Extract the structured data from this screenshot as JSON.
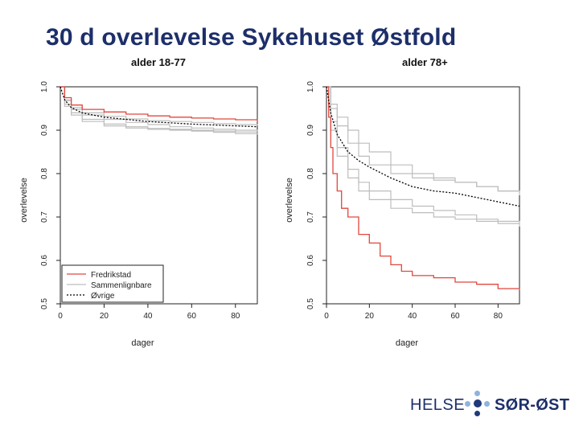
{
  "slide": {
    "title": "30 d overlevelse Sykehuset Østfold"
  },
  "logo": {
    "left_word": "HELSE",
    "right_word": "SØR-ØST",
    "dark": "#1f3a7a",
    "light": "#8fb4dc"
  },
  "colors": {
    "fredrikstad": "#e0473d",
    "sammenlignbare": "#bdbdbd",
    "ovrige": "#000000",
    "axis": "#222222"
  },
  "chart_data": [
    {
      "type": "line",
      "title": "alder 18-77",
      "xlabel": "dager",
      "ylabel": "overlevelse",
      "xlim": [
        0,
        90
      ],
      "ylim": [
        0.5,
        1.0
      ],
      "xticks": [
        "0",
        "20",
        "40",
        "60",
        "80"
      ],
      "yticks": [
        "0.5",
        "0.6",
        "0.7",
        "0.8",
        "0.9",
        "1.0"
      ],
      "grid": false,
      "legend_position": "bottom-left",
      "legend": [
        "Fredrikstad",
        "Sammenlignbare",
        "Øvrige"
      ],
      "series": [
        {
          "name": "Fredrikstad",
          "role": "fredrikstad",
          "style": "step",
          "x": [
            0,
            2,
            5,
            10,
            20,
            30,
            40,
            50,
            60,
            70,
            80,
            90
          ],
          "y": [
            1.0,
            0.975,
            0.958,
            0.948,
            0.942,
            0.937,
            0.933,
            0.93,
            0.928,
            0.926,
            0.924,
            0.92
          ]
        },
        {
          "role": "sammenlignbare",
          "style": "step",
          "x": [
            0,
            2,
            5,
            10,
            20,
            30,
            40,
            50,
            60,
            70,
            80,
            90
          ],
          "y": [
            1.0,
            0.97,
            0.952,
            0.94,
            0.932,
            0.926,
            0.922,
            0.92,
            0.918,
            0.915,
            0.913,
            0.911
          ]
        },
        {
          "role": "sammenlignbare",
          "style": "step",
          "x": [
            0,
            2,
            5,
            10,
            20,
            30,
            40,
            50,
            60,
            70,
            80,
            90
          ],
          "y": [
            1.0,
            0.968,
            0.948,
            0.935,
            0.925,
            0.918,
            0.913,
            0.908,
            0.905,
            0.902,
            0.9,
            0.898
          ]
        },
        {
          "role": "sammenlignbare",
          "style": "step",
          "x": [
            0,
            2,
            5,
            10,
            20,
            30,
            40,
            50,
            60,
            70,
            80,
            90
          ],
          "y": [
            1.0,
            0.96,
            0.94,
            0.925,
            0.914,
            0.908,
            0.904,
            0.902,
            0.9,
            0.898,
            0.896,
            0.895
          ]
        },
        {
          "role": "sammenlignbare",
          "style": "step",
          "x": [
            0,
            2,
            5,
            10,
            20,
            30,
            40,
            50,
            60,
            70,
            80,
            90
          ],
          "y": [
            1.0,
            0.955,
            0.935,
            0.92,
            0.91,
            0.905,
            0.902,
            0.9,
            0.898,
            0.895,
            0.892,
            0.89
          ]
        },
        {
          "name": "Øvrige",
          "role": "ovrige",
          "style": "dotted",
          "x": [
            0,
            2,
            5,
            10,
            20,
            30,
            40,
            50,
            60,
            70,
            80,
            90
          ],
          "y": [
            1.0,
            0.97,
            0.952,
            0.94,
            0.93,
            0.925,
            0.92,
            0.917,
            0.914,
            0.912,
            0.91,
            0.908
          ]
        }
      ]
    },
    {
      "type": "line",
      "title": "alder 78+",
      "xlabel": "dager",
      "ylabel": "overlevelse",
      "xlim": [
        0,
        90
      ],
      "ylim": [
        0.5,
        1.0
      ],
      "xticks": [
        "0",
        "20",
        "40",
        "60",
        "80"
      ],
      "yticks": [
        "0.5",
        "0.6",
        "0.7",
        "0.8",
        "0.9",
        "1.0"
      ],
      "grid": false,
      "series": [
        {
          "name": "Fredrikstad",
          "role": "fredrikstad",
          "style": "step",
          "x": [
            0,
            1,
            2,
            3,
            5,
            7,
            10,
            15,
            20,
            25,
            30,
            35,
            40,
            50,
            60,
            70,
            80,
            90
          ],
          "y": [
            1.0,
            0.93,
            0.86,
            0.8,
            0.76,
            0.72,
            0.7,
            0.66,
            0.64,
            0.61,
            0.59,
            0.575,
            0.565,
            0.56,
            0.55,
            0.545,
            0.535,
            0.532
          ]
        },
        {
          "role": "sammenlignbare",
          "style": "step",
          "x": [
            0,
            2,
            5,
            10,
            15,
            20,
            30,
            40,
            50,
            60,
            70,
            80,
            90
          ],
          "y": [
            1.0,
            0.96,
            0.93,
            0.9,
            0.87,
            0.85,
            0.82,
            0.8,
            0.79,
            0.78,
            0.77,
            0.76,
            0.75
          ]
        },
        {
          "role": "sammenlignbare",
          "style": "step",
          "x": [
            0,
            2,
            5,
            10,
            15,
            20,
            30,
            40,
            50,
            60,
            70,
            80,
            90
          ],
          "y": [
            1.0,
            0.95,
            0.91,
            0.87,
            0.84,
            0.82,
            0.8,
            0.79,
            0.785,
            0.78,
            0.77,
            0.76,
            0.755
          ]
        },
        {
          "role": "sammenlignbare",
          "style": "step",
          "x": [
            0,
            2,
            5,
            10,
            15,
            20,
            30,
            40,
            50,
            60,
            70,
            80,
            90
          ],
          "y": [
            1.0,
            0.92,
            0.86,
            0.81,
            0.78,
            0.76,
            0.74,
            0.725,
            0.715,
            0.705,
            0.695,
            0.69,
            0.685
          ]
        },
        {
          "role": "sammenlignbare",
          "style": "step",
          "x": [
            0,
            2,
            5,
            10,
            15,
            20,
            30,
            40,
            50,
            60,
            70,
            80,
            90
          ],
          "y": [
            1.0,
            0.9,
            0.84,
            0.79,
            0.76,
            0.74,
            0.72,
            0.71,
            0.7,
            0.695,
            0.69,
            0.685,
            0.678
          ]
        },
        {
          "name": "Øvrige",
          "role": "ovrige",
          "style": "dotted",
          "x": [
            0,
            2,
            5,
            10,
            15,
            20,
            30,
            40,
            50,
            60,
            70,
            80,
            90
          ],
          "y": [
            1.0,
            0.94,
            0.89,
            0.85,
            0.83,
            0.815,
            0.79,
            0.77,
            0.76,
            0.755,
            0.745,
            0.735,
            0.725
          ]
        }
      ]
    }
  ]
}
